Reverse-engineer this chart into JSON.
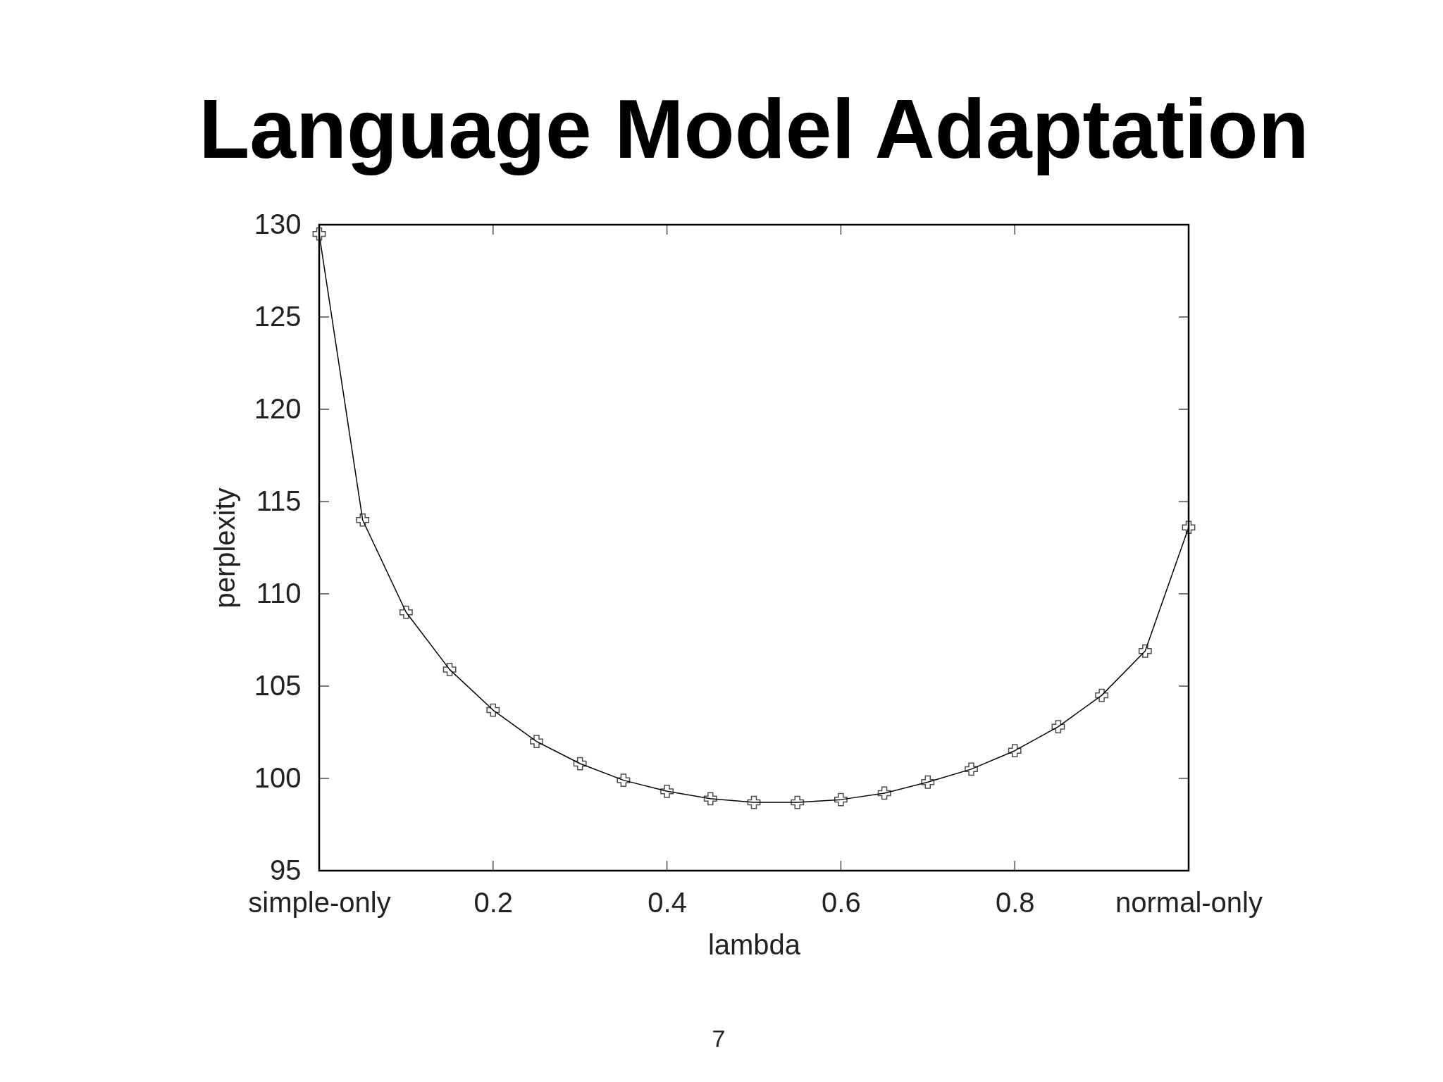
{
  "chart_data": {
    "type": "line",
    "title": "Language Model Adaptation",
    "xlabel": "lambda",
    "ylabel": "perplexity",
    "x": [
      0,
      0.05,
      0.1,
      0.15,
      0.2,
      0.25,
      0.3,
      0.35,
      0.4,
      0.45,
      0.5,
      0.55,
      0.6,
      0.65,
      0.7,
      0.75,
      0.8,
      0.85,
      0.9,
      0.95,
      1.0
    ],
    "series": [
      {
        "color": "#000000",
        "values": [
          129.5,
          114.0,
          109.0,
          105.9,
          103.7,
          102.0,
          100.8,
          99.9,
          99.3,
          98.9,
          98.7,
          98.7,
          98.85,
          99.2,
          99.8,
          100.5,
          101.5,
          102.8,
          104.5,
          106.9,
          113.6
        ]
      }
    ],
    "xlim": [
      0,
      1
    ],
    "ylim": [
      95,
      130
    ],
    "xticks": [
      {
        "value": 0,
        "label": "simple-only"
      },
      0.2,
      0.4,
      0.6,
      0.8,
      {
        "value": 1,
        "label": "normal-only"
      }
    ],
    "yticks": [
      95,
      100,
      105,
      110,
      115,
      120,
      125,
      130
    ],
    "marker": "cross",
    "line_style": "solid",
    "grid": false,
    "legend": false,
    "annotations": [
      "7"
    ]
  }
}
